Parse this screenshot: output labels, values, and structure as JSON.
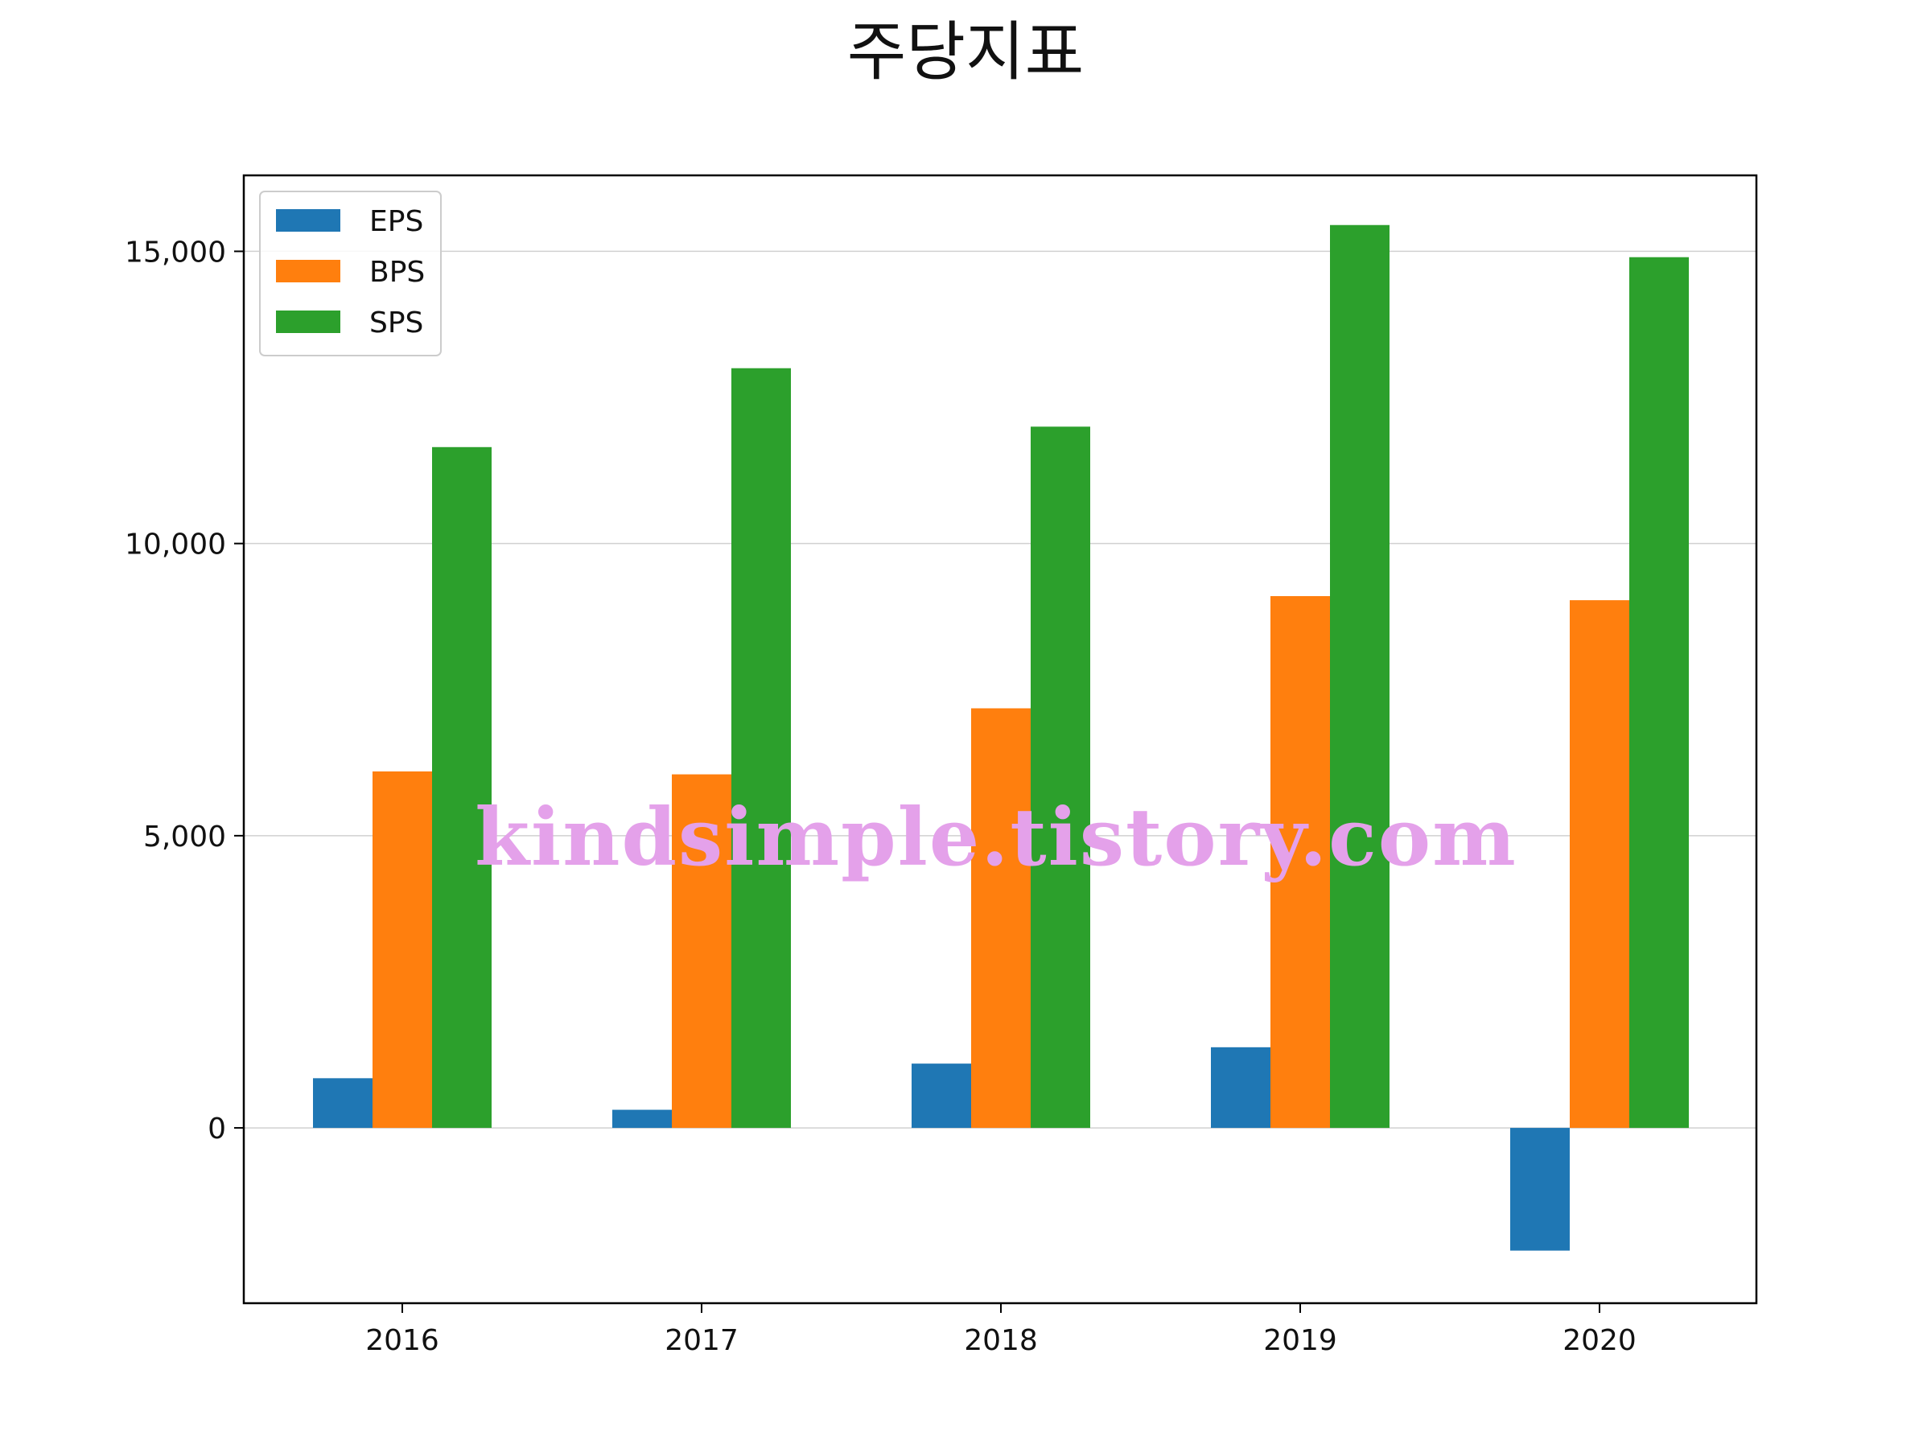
{
  "chart_data": {
    "type": "bar",
    "title": "주당지표",
    "categories": [
      "2016",
      "2017",
      "2018",
      "2019",
      "2020"
    ],
    "series": [
      {
        "name": "EPS",
        "color": "#1f77b4",
        "values": [
          850,
          310,
          1100,
          1380,
          -2100
        ]
      },
      {
        "name": "BPS",
        "color": "#ff7f0e",
        "values": [
          6100,
          6050,
          7180,
          9100,
          9030
        ]
      },
      {
        "name": "SPS",
        "color": "#2ca02c",
        "values": [
          11650,
          13000,
          12000,
          15450,
          14900
        ]
      }
    ],
    "ylim": [
      -3000,
      16300
    ],
    "yticks": [
      0,
      5000,
      10000,
      15000
    ],
    "ytick_labels": [
      "0",
      "5,000",
      "10,000",
      "15,000"
    ],
    "grid": "y",
    "legend_position": "top-left"
  },
  "watermark": "kindsimple.tistory.com"
}
